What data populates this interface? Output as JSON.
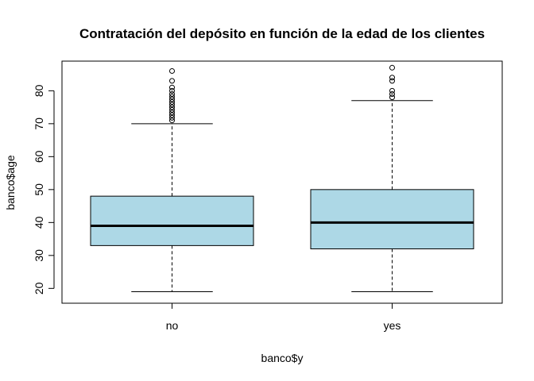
{
  "chart_data": {
    "type": "boxplot",
    "title": "Contratación del depósito en función de la edad de los clientes",
    "xlabel": "banco$y",
    "ylabel": "banco$age",
    "categories": [
      "no",
      "yes"
    ],
    "yticks": [
      "20",
      "30",
      "40",
      "50",
      "60",
      "70",
      "80"
    ],
    "ylim": [
      15.5,
      89
    ],
    "box_fill": "#add8e6",
    "grid": false,
    "boxes": [
      {
        "category": "no",
        "whisker_low": 19,
        "q1": 33,
        "median": 39,
        "q3": 48,
        "whisker_high": 70,
        "outliers": [
          71,
          71.8,
          72.6,
          73.4,
          74.2,
          75,
          75.8,
          76.6,
          77.4,
          78.2,
          79,
          80,
          81,
          83,
          86
        ]
      },
      {
        "category": "yes",
        "whisker_low": 19,
        "q1": 32,
        "median": 40,
        "q3": 50,
        "whisker_high": 77,
        "outliers": [
          78,
          79,
          80,
          83,
          84,
          87
        ]
      }
    ]
  }
}
